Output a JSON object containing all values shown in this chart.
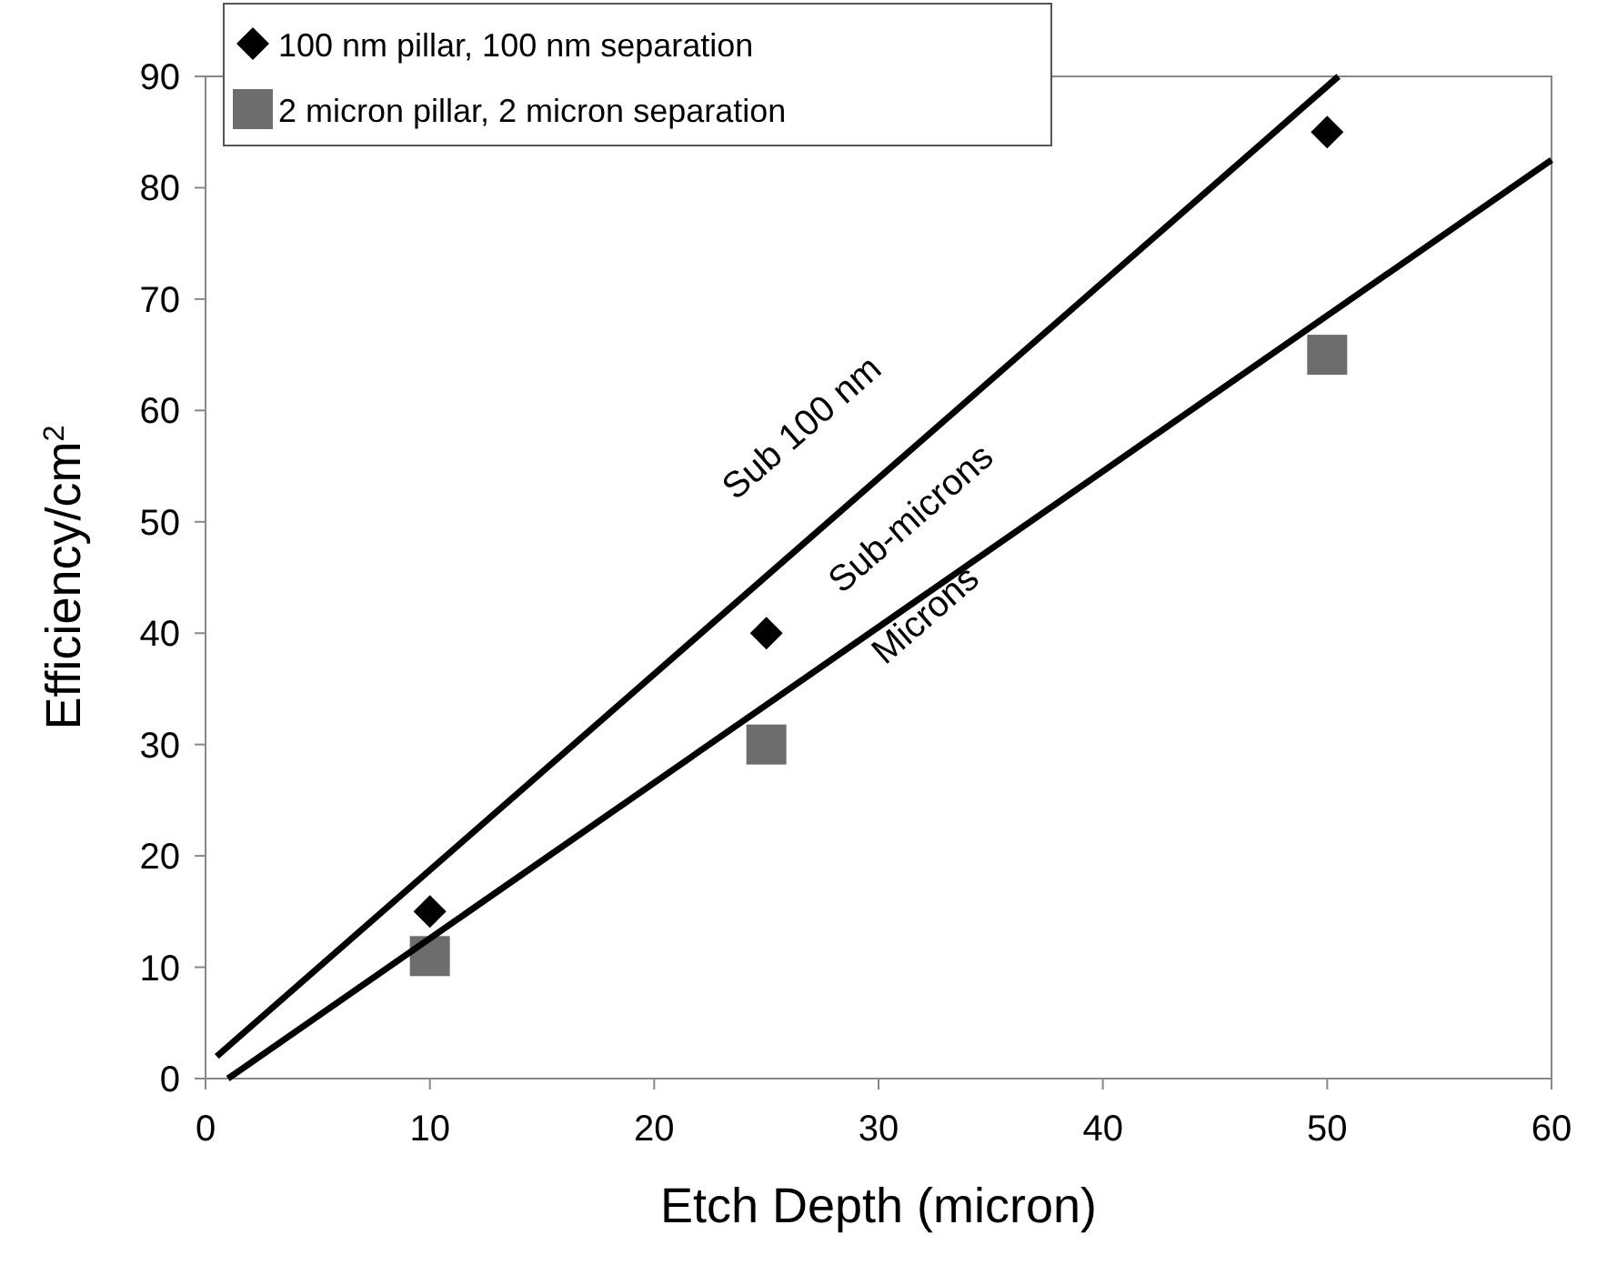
{
  "chart_data": {
    "type": "scatter",
    "xlabel": "Etch Depth (micron)",
    "ylabel": "Efficiency/cm$^{2}$",
    "xlim": [
      0,
      60
    ],
    "ylim": [
      0,
      90
    ],
    "xticks": [
      0,
      10,
      20,
      30,
      40,
      50,
      60
    ],
    "yticks": [
      0,
      10,
      20,
      30,
      40,
      50,
      60,
      70,
      80,
      90
    ],
    "grid": false,
    "legend": "top left",
    "series": [
      {
        "name": "100 nm pillar, 100 nm separation",
        "color": "#000000",
        "marker": "diamond",
        "x": [
          10,
          25,
          50
        ],
        "values": [
          15,
          40,
          85
        ]
      },
      {
        "name": "2 micron pillar, 2 micron separation",
        "color": "#6d6d6d",
        "marker": "square",
        "x": [
          10,
          25,
          50
        ],
        "values": [
          11,
          30,
          65
        ]
      },
      {
        "type": "line",
        "color": "#000000",
        "marker": "none",
        "x": [
          0.5,
          50.5
        ],
        "values": [
          2,
          90
        ]
      },
      {
        "type": "line",
        "color": "#000000",
        "marker": "none",
        "x": [
          1,
          60
        ],
        "values": [
          0,
          82.5
        ]
      }
    ],
    "annotations": [
      "Sub 100 nm",
      "Sub-microns",
      "Microns"
    ]
  }
}
